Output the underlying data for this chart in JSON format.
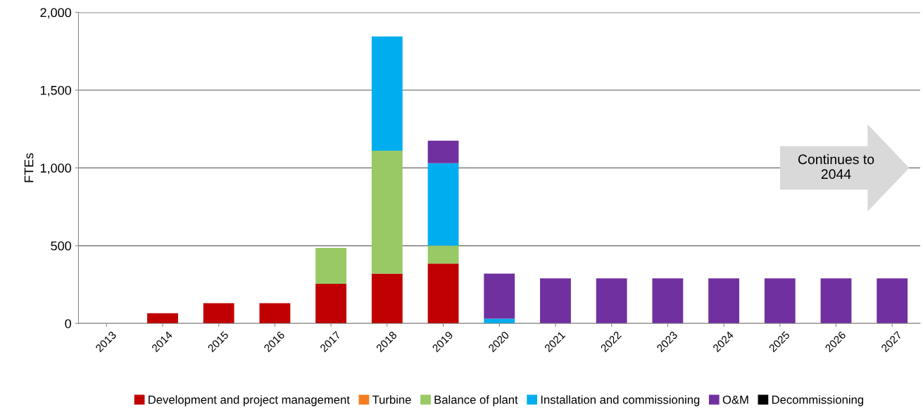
{
  "chart_data": {
    "type": "bar",
    "stacked": true,
    "ylabel": "FTEs",
    "categories": [
      "2013",
      "2014",
      "2015",
      "2016",
      "2017",
      "2018",
      "2019",
      "2020",
      "2021",
      "2022",
      "2023",
      "2024",
      "2025",
      "2026",
      "2027"
    ],
    "series": [
      {
        "name": "Development and project management",
        "color": "#c00000",
        "values": [
          0,
          65,
          130,
          130,
          255,
          320,
          385,
          0,
          0,
          0,
          0,
          0,
          0,
          0,
          0
        ]
      },
      {
        "name": "Turbine",
        "color": "#f47d20",
        "values": [
          0,
          0,
          0,
          0,
          0,
          0,
          0,
          0,
          0,
          0,
          0,
          0,
          0,
          0,
          0
        ]
      },
      {
        "name": "Balance of plant",
        "color": "#98c964",
        "values": [
          0,
          0,
          0,
          0,
          230,
          790,
          115,
          0,
          0,
          0,
          0,
          0,
          0,
          0,
          0
        ]
      },
      {
        "name": "Installation and commissioning",
        "color": "#00aeef",
        "values": [
          0,
          0,
          0,
          0,
          0,
          735,
          530,
          30,
          0,
          0,
          0,
          0,
          0,
          0,
          0
        ]
      },
      {
        "name": "O&M",
        "color": "#7030a0",
        "values": [
          0,
          0,
          0,
          0,
          0,
          0,
          145,
          290,
          290,
          290,
          290,
          290,
          290,
          290,
          290
        ]
      },
      {
        "name": "Decommissioning",
        "color": "#000000",
        "values": [
          0,
          0,
          0,
          0,
          0,
          0,
          0,
          0,
          0,
          0,
          0,
          0,
          0,
          0,
          0
        ]
      }
    ],
    "ylim": [
      0,
      2000
    ],
    "yticks": [
      {
        "value": 0,
        "label": "0"
      },
      {
        "value": 500,
        "label": "500"
      },
      {
        "value": 1000,
        "label": "1,000"
      },
      {
        "value": 1500,
        "label": "1,500"
      },
      {
        "value": 2000,
        "label": "2,000"
      }
    ],
    "grid": "y",
    "legend": "bottom",
    "annotations": [
      "Continues to\n2044"
    ]
  }
}
